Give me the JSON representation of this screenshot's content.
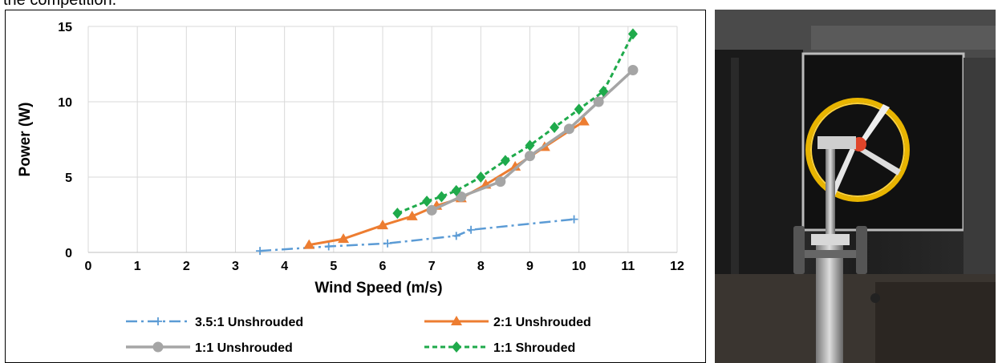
{
  "caption_fragment": "the competition.",
  "photo": {
    "label": "wind-turbine-photo"
  },
  "colors": {
    "s35": "#5b9bd5",
    "s2": "#ed7d31",
    "s11u": "#a5a5a5",
    "s11s": "#1faa4b",
    "grid": "#d9d9d9"
  },
  "chart_data": {
    "type": "line",
    "title": "",
    "xlabel": "Wind Speed (m/s)",
    "ylabel": "Power (W)",
    "xlim": [
      0,
      12
    ],
    "ylim": [
      0,
      15
    ],
    "xticks": [
      "0",
      "1",
      "2",
      "3",
      "4",
      "5",
      "6",
      "7",
      "8",
      "9",
      "10",
      "11",
      "12"
    ],
    "yticks": [
      "0",
      "5",
      "10",
      "15"
    ],
    "grid": true,
    "legend": "bottom",
    "series": [
      {
        "name": "3.5:1 Unshrouded",
        "style": "dash-dot",
        "marker": "plus",
        "x": [
          3.5,
          4.9,
          6.1,
          7.5,
          7.8,
          9.9
        ],
        "y": [
          0.1,
          0.4,
          0.6,
          1.1,
          1.5,
          2.2
        ]
      },
      {
        "name": "2:1 Unshrouded",
        "style": "solid",
        "marker": "triangle",
        "x": [
          4.5,
          5.2,
          6.0,
          6.6,
          7.1,
          7.6,
          8.1,
          8.7,
          9.3,
          10.1
        ],
        "y": [
          0.5,
          0.9,
          1.8,
          2.4,
          3.1,
          3.6,
          4.5,
          5.7,
          7.0,
          8.7
        ]
      },
      {
        "name": "1:1 Unshrouded",
        "style": "solid",
        "marker": "circle",
        "x": [
          7.0,
          7.6,
          8.4,
          9.0,
          9.8,
          10.4,
          11.1
        ],
        "y": [
          2.8,
          3.7,
          4.7,
          6.4,
          8.2,
          10.0,
          12.1
        ]
      },
      {
        "name": "1:1 Shrouded",
        "style": "dashed",
        "marker": "diamond",
        "x": [
          6.3,
          6.9,
          7.2,
          7.5,
          8.0,
          8.5,
          9.0,
          9.5,
          10.0,
          10.5,
          11.1
        ],
        "y": [
          2.6,
          3.4,
          3.7,
          4.1,
          5.0,
          6.1,
          7.1,
          8.3,
          9.5,
          10.7,
          14.5
        ]
      }
    ]
  }
}
